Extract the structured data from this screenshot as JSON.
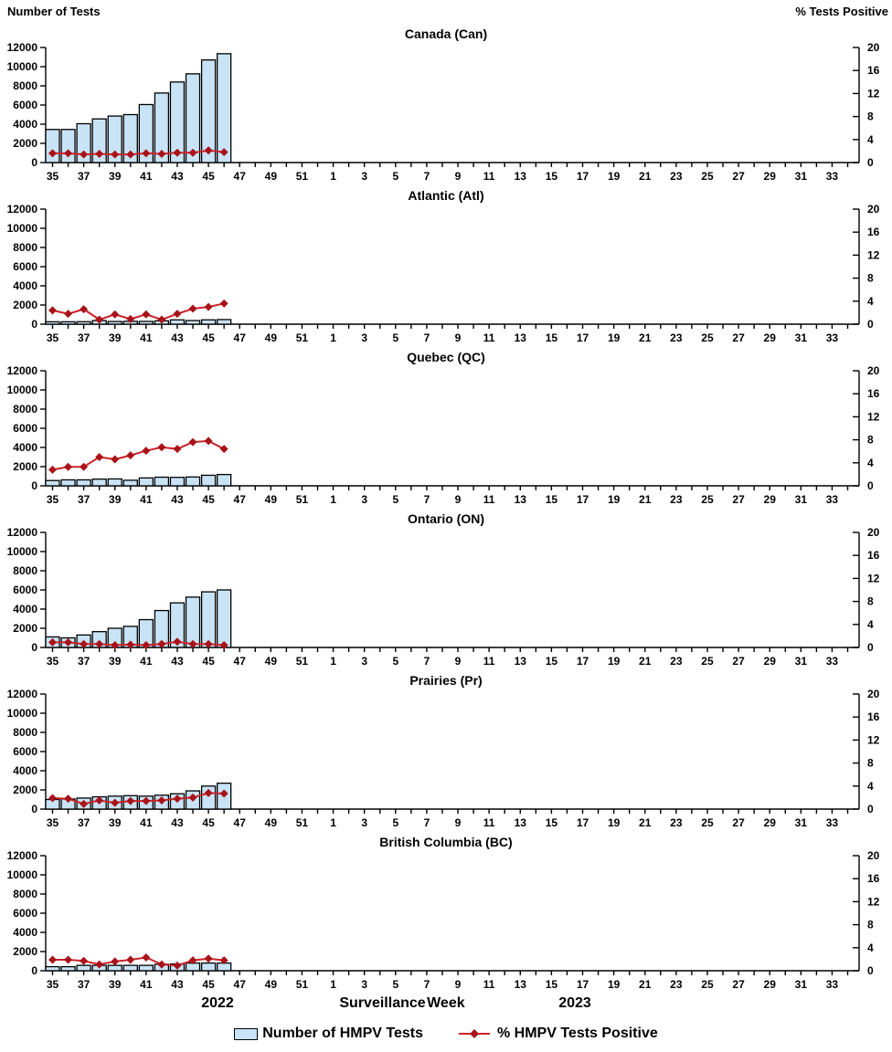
{
  "page": {
    "left_axis_header": "Number of Tests",
    "right_axis_header": "% Tests Positive",
    "footer": {
      "year_left": "2022",
      "x_axis_title": "Surveillance Week",
      "year_right": "2023"
    },
    "legend": {
      "bars_label": "Number of HMPV Tests",
      "line_label": "% HMPV Tests Positive"
    }
  },
  "colors": {
    "bar_fill": "#c9e3f6",
    "bar_border": "#000000",
    "line": "#cb2229",
    "marker": "#a81219",
    "axis": "#000000"
  },
  "chart_meta": {
    "categories": [
      35,
      36,
      37,
      38,
      39,
      40,
      41,
      42,
      43,
      44,
      45,
      46,
      47,
      48,
      49,
      50,
      51,
      52,
      1,
      2,
      3,
      4,
      5,
      6,
      7,
      8,
      9,
      10,
      11,
      12,
      13,
      14,
      15,
      16,
      17,
      18,
      19,
      20,
      21,
      22,
      23,
      24,
      25,
      26,
      27,
      28,
      29,
      30,
      31,
      32,
      33,
      34
    ],
    "x_labels_every": "odd weeks only (35,37,...,51,1,3,...,33)",
    "xlabel": "Surveillance Week",
    "ylabel_left": "Number of Tests",
    "ylabel_right": "% Tests Positive",
    "ylim_left": [
      0,
      12000
    ],
    "ylim_right": [
      0,
      20
    ],
    "yticks_left": [
      0,
      2000,
      4000,
      6000,
      8000,
      10000,
      12000
    ],
    "yticks_right": [
      0,
      4,
      8,
      12,
      16,
      20
    ],
    "grid": false,
    "legend_position": "bottom"
  },
  "chart_data": [
    {
      "type": "bar+line",
      "title": "Canada (Can)",
      "data_weeks": [
        35,
        36,
        37,
        38,
        39,
        40,
        41,
        42,
        43,
        44,
        45,
        46
      ],
      "series": [
        {
          "name": "Number of HMPV Tests",
          "axis": "left",
          "values": [
            3450,
            3450,
            4050,
            4550,
            4850,
            5000,
            6050,
            7250,
            8400,
            9250,
            10700,
            11350
          ]
        },
        {
          "name": "% HMPV Tests Positive",
          "axis": "right",
          "values": [
            1.6,
            1.6,
            1.4,
            1.5,
            1.4,
            1.4,
            1.6,
            1.5,
            1.7,
            1.7,
            2.1,
            1.8
          ]
        }
      ]
    },
    {
      "type": "bar+line",
      "title": "Atlantic (Atl)",
      "data_weeks": [
        35,
        36,
        37,
        38,
        39,
        40,
        41,
        42,
        43,
        44,
        45,
        46
      ],
      "series": [
        {
          "name": "Number of HMPV Tests",
          "axis": "left",
          "values": [
            250,
            250,
            260,
            380,
            280,
            300,
            290,
            350,
            450,
            380,
            450,
            480
          ]
        },
        {
          "name": "% HMPV Tests Positive",
          "axis": "right",
          "values": [
            2.4,
            1.8,
            2.6,
            0.8,
            1.7,
            0.9,
            1.7,
            0.8,
            1.8,
            2.7,
            3.0,
            3.6
          ]
        }
      ]
    },
    {
      "type": "bar+line",
      "title": "Quebec (QC)",
      "data_weeks": [
        35,
        36,
        37,
        38,
        39,
        40,
        41,
        42,
        43,
        44,
        45,
        46
      ],
      "series": [
        {
          "name": "Number of HMPV Tests",
          "axis": "left",
          "values": [
            550,
            620,
            620,
            700,
            720,
            580,
            820,
            900,
            880,
            920,
            1100,
            1180
          ]
        },
        {
          "name": "% HMPV Tests Positive",
          "axis": "right",
          "values": [
            2.8,
            3.3,
            3.3,
            5.0,
            4.6,
            5.3,
            6.1,
            6.7,
            6.4,
            7.6,
            7.8,
            6.4
          ]
        }
      ]
    },
    {
      "type": "bar+line",
      "title": "Ontario (ON)",
      "data_weeks": [
        35,
        36,
        37,
        38,
        39,
        40,
        41,
        42,
        43,
        44,
        45,
        46
      ],
      "series": [
        {
          "name": "Number of HMPV Tests",
          "axis": "left",
          "values": [
            1100,
            1000,
            1300,
            1650,
            2000,
            2200,
            2900,
            3850,
            4650,
            5250,
            5800,
            6000
          ]
        },
        {
          "name": "% HMPV Tests Positive",
          "axis": "right",
          "values": [
            0.9,
            0.9,
            0.6,
            0.6,
            0.4,
            0.5,
            0.4,
            0.6,
            1.0,
            0.6,
            0.6,
            0.4
          ]
        }
      ]
    },
    {
      "type": "bar+line",
      "title": "Prairies (Pr)",
      "data_weeks": [
        35,
        36,
        37,
        38,
        39,
        40,
        41,
        42,
        43,
        44,
        45,
        46
      ],
      "series": [
        {
          "name": "Number of HMPV Tests",
          "axis": "left",
          "values": [
            1000,
            1050,
            1150,
            1280,
            1350,
            1400,
            1350,
            1450,
            1600,
            1900,
            2400,
            2700
          ]
        },
        {
          "name": "% HMPV Tests Positive",
          "axis": "right",
          "values": [
            1.9,
            1.8,
            0.9,
            1.5,
            1.1,
            1.4,
            1.4,
            1.5,
            1.8,
            2.0,
            2.8,
            2.7
          ]
        }
      ]
    },
    {
      "type": "bar+line",
      "title": "British Columbia (BC)",
      "data_weeks": [
        35,
        36,
        37,
        38,
        39,
        40,
        41,
        42,
        43,
        44,
        45,
        46
      ],
      "series": [
        {
          "name": "Number of HMPV Tests",
          "axis": "left",
          "values": [
            420,
            420,
            560,
            560,
            560,
            560,
            560,
            680,
            700,
            800,
            800,
            800
          ]
        },
        {
          "name": "% HMPV Tests Positive",
          "axis": "right",
          "values": [
            1.9,
            1.9,
            1.7,
            1.1,
            1.6,
            1.9,
            2.3,
            1.1,
            0.9,
            1.8,
            2.1,
            1.8
          ]
        }
      ]
    }
  ]
}
